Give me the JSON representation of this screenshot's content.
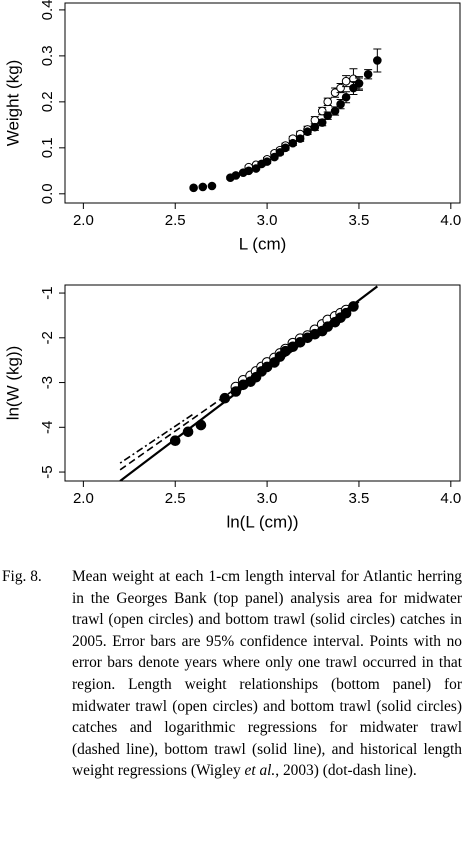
{
  "chart_data": [
    {
      "type": "scatter",
      "xlabel": "L (cm)",
      "ylabel": "Weight (kg)",
      "xlim": [
        1.9,
        4.05
      ],
      "ylim": [
        -0.02,
        0.415
      ],
      "xticks": [
        {
          "value": 2.0,
          "label": "2.0"
        },
        2.5,
        {
          "value": 3.0,
          "label": "3.0"
        },
        3.5,
        {
          "value": 4.0,
          "label": "4.0"
        }
      ],
      "yticks": [
        {
          "value": 0,
          "label": "0.0"
        },
        0.1,
        0.2,
        0.3,
        0.4
      ],
      "series": [
        {
          "marker": "open",
          "color": "#000000",
          "x": [
            2.9,
            2.94,
            3.0,
            3.04,
            3.07,
            3.1,
            3.14,
            3.18,
            3.22,
            3.26,
            3.3,
            3.33,
            3.37,
            3.4,
            3.43,
            3.47,
            3.5
          ],
          "values": [
            0.058,
            0.063,
            0.075,
            0.088,
            0.095,
            0.105,
            0.12,
            0.13,
            0.14,
            0.16,
            0.18,
            0.2,
            0.22,
            0.23,
            0.245,
            0.25,
            0.24
          ],
          "errors": [
            0.003,
            0.003,
            0.004,
            0.004,
            0.004,
            0.005,
            0.005,
            0.006,
            0.007,
            0.008,
            0.008,
            0.008,
            0.01,
            0.01,
            0.012,
            0.022,
            0.012
          ]
        },
        {
          "marker": "filled",
          "color": "#000000",
          "x": [
            2.6,
            2.65,
            2.7,
            2.8,
            2.83,
            2.87,
            2.9,
            2.94,
            2.97,
            3.0,
            3.04,
            3.07,
            3.1,
            3.14,
            3.18,
            3.22,
            3.26,
            3.3,
            3.33,
            3.37,
            3.4,
            3.43,
            3.47,
            3.5,
            3.55,
            3.6
          ],
          "values": [
            0.013,
            0.015,
            0.017,
            0.035,
            0.04,
            0.046,
            0.05,
            0.055,
            0.065,
            0.07,
            0.08,
            0.09,
            0.1,
            0.11,
            0.12,
            0.135,
            0.145,
            0.155,
            0.17,
            0.18,
            0.195,
            0.21,
            0.23,
            0.24,
            0.26,
            0.29
          ],
          "errors": [
            0.002,
            0.002,
            0.002,
            0.003,
            0.003,
            0.003,
            0.003,
            0.003,
            0.004,
            0.004,
            0.004,
            0.005,
            0.005,
            0.005,
            0.006,
            0.006,
            0.007,
            0.007,
            0.008,
            0.009,
            0.01,
            0.012,
            0.014,
            0.015,
            0.01,
            0.025
          ]
        }
      ]
    },
    {
      "type": "scatter",
      "xlabel": "ln(L (cm))",
      "ylabel": "ln(W (kg))",
      "xlim": [
        1.9,
        4.05
      ],
      "ylim": [
        -5.2,
        -0.82
      ],
      "xticks": [
        {
          "value": 2.0,
          "label": "2.0"
        },
        2.5,
        {
          "value": 3.0,
          "label": "3.0"
        },
        3.5,
        {
          "value": 4.0,
          "label": "4.0"
        }
      ],
      "yticks": [
        -5,
        -4,
        -3,
        -2,
        -1
      ],
      "series": [
        {
          "marker": "open",
          "color": "#000000",
          "x": [
            2.83,
            2.87,
            2.91,
            2.94,
            2.97,
            3.0,
            3.04,
            3.07,
            3.1,
            3.14,
            3.18,
            3.22,
            3.26,
            3.3,
            3.33,
            3.37,
            3.4,
            3.43
          ],
          "values": [
            -3.1,
            -2.95,
            -2.85,
            -2.75,
            -2.65,
            -2.55,
            -2.45,
            -2.35,
            -2.25,
            -2.12,
            -2.02,
            -1.95,
            -1.82,
            -1.7,
            -1.6,
            -1.52,
            -1.45,
            -1.38
          ]
        },
        {
          "marker": "filled",
          "color": "#000000",
          "x": [
            2.5,
            2.57,
            2.64,
            2.77,
            2.83,
            2.87,
            2.91,
            2.94,
            2.97,
            3.0,
            3.04,
            3.07,
            3.1,
            3.14,
            3.18,
            3.22,
            3.26,
            3.3,
            3.33,
            3.37,
            3.4,
            3.43,
            3.47
          ],
          "values": [
            -4.3,
            -4.1,
            -3.95,
            -3.35,
            -3.2,
            -3.05,
            -2.98,
            -2.88,
            -2.75,
            -2.65,
            -2.55,
            -2.42,
            -2.3,
            -2.2,
            -2.1,
            -2.0,
            -1.92,
            -1.85,
            -1.75,
            -1.65,
            -1.55,
            -1.45,
            -1.3
          ]
        },
        {
          "marker": "none",
          "style": "solid",
          "color": "#000000",
          "x": [
            2.2,
            3.6
          ],
          "values": [
            -5.2,
            -0.85
          ]
        },
        {
          "marker": "none",
          "style": "dashed",
          "color": "#000000",
          "x": [
            2.2,
            3.5
          ],
          "values": [
            -4.95,
            -1.2
          ]
        },
        {
          "marker": "none",
          "style": "dotdash",
          "color": "#000000",
          "x": [
            2.2,
            2.6
          ],
          "values": [
            -4.8,
            -3.7
          ]
        }
      ]
    }
  ],
  "caption": {
    "label": "Fig. 8.",
    "text_before": "Mean weight at each 1-cm length interval for Atlantic herring in the Georges Bank (top panel) analysis area for midwater trawl (open circles) and bottom trawl (solid circles) catches in 2005. Error bars are 95% confidence interval. Points with no error bars denote years where only one trawl occurred in that region. Length weight relationships (bottom panel) for midwater trawl (open circles) and bottom trawl (solid circles) catches and logarithmic regressions for midwater trawl (dashed line), bottom trawl (solid line), and historical length weight regressions (Wigley ",
    "italic": "et al.",
    "text_after": ", 2003) (dot-dash line)."
  }
}
